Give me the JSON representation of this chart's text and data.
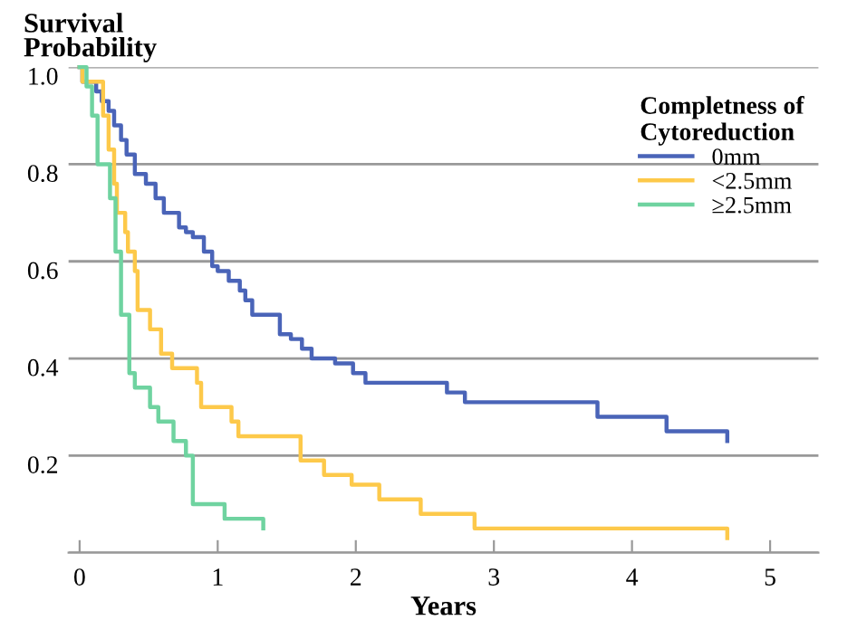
{
  "chart_data": {
    "type": "step",
    "xlabel": "Years",
    "ylabel": "Survival\nProbability",
    "legend_title": "Completness of\nCytoreduction",
    "xlim": [
      -0.08,
      5.35
    ],
    "ylim": [
      0,
      1.0
    ],
    "xticks": [
      0,
      1,
      2,
      3,
      4,
      5
    ],
    "yticks": [
      {
        "value": 0,
        "label": null
      },
      0.2,
      0.4,
      0.6,
      0.8,
      {
        "value": 1.0,
        "label": "1.0"
      }
    ],
    "grid": "y",
    "legend": "top right",
    "line_style": "solid",
    "marker": "none",
    "series": [
      {
        "name": "0mm",
        "color": "#4a64b8",
        "x": [
          0,
          0.02,
          0.12,
          0.16,
          0.21,
          0.25,
          0.3,
          0.34,
          0.4,
          0.48,
          0.55,
          0.61,
          0.72,
          0.77,
          0.82,
          0.9,
          0.96,
          1.0,
          1.08,
          1.16,
          1.2,
          1.25,
          1.45,
          1.53,
          1.61,
          1.68,
          1.85,
          1.98,
          2.07,
          2.66,
          2.79,
          3.75,
          4.25,
          4.69
        ],
        "values": [
          1.0,
          0.97,
          0.95,
          0.93,
          0.91,
          0.88,
          0.85,
          0.82,
          0.78,
          0.76,
          0.73,
          0.7,
          0.67,
          0.66,
          0.65,
          0.62,
          0.59,
          0.58,
          0.56,
          0.54,
          0.52,
          0.49,
          0.45,
          0.44,
          0.42,
          0.4,
          0.39,
          0.37,
          0.35,
          0.33,
          0.31,
          0.28,
          0.25,
          0.23
        ]
      },
      {
        "name": "<2.5mm",
        "color": "#fdc94a",
        "x": [
          0,
          0.02,
          0.17,
          0.21,
          0.25,
          0.27,
          0.33,
          0.35,
          0.4,
          0.42,
          0.51,
          0.59,
          0.67,
          0.85,
          0.88,
          1.1,
          1.15,
          1.6,
          1.77,
          1.97,
          2.17,
          2.47,
          2.86,
          4.69
        ],
        "values": [
          1.0,
          0.97,
          0.9,
          0.83,
          0.76,
          0.7,
          0.66,
          0.62,
          0.58,
          0.5,
          0.46,
          0.41,
          0.38,
          0.35,
          0.3,
          0.27,
          0.24,
          0.19,
          0.16,
          0.14,
          0.11,
          0.08,
          0.05,
          0.03
        ]
      },
      {
        "name": "≥2.5mm",
        "color": "#6fd3a0",
        "x": [
          0,
          0.05,
          0.09,
          0.13,
          0.22,
          0.26,
          0.3,
          0.36,
          0.4,
          0.51,
          0.57,
          0.68,
          0.77,
          0.82,
          1.05,
          1.33
        ],
        "values": [
          1.0,
          0.96,
          0.9,
          0.8,
          0.73,
          0.62,
          0.49,
          0.37,
          0.34,
          0.3,
          0.27,
          0.23,
          0.2,
          0.1,
          0.07,
          0.05
        ]
      }
    ]
  }
}
